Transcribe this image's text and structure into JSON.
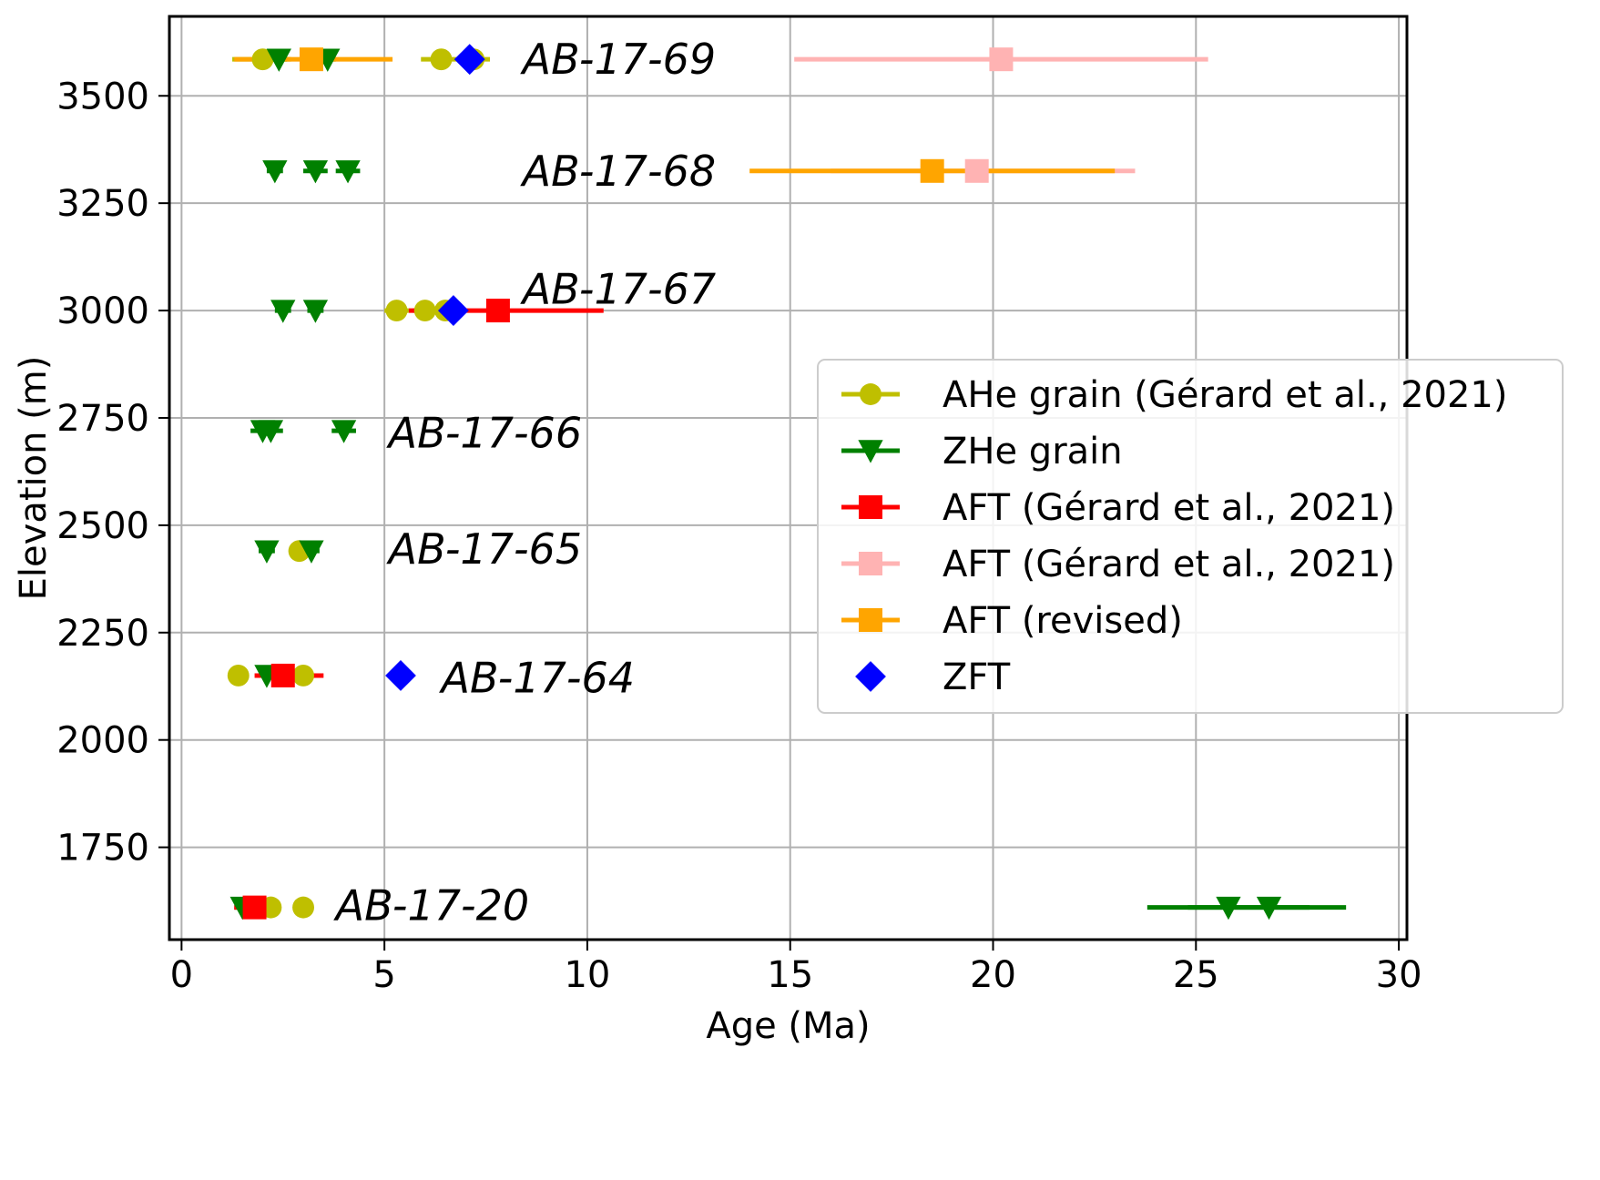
{
  "chart_data": {
    "type": "scatter",
    "xlabel": "Age (Ma)",
    "ylabel": "Elevation (m)",
    "xlim": [
      -0.3,
      30.2
    ],
    "ylim": [
      1535,
      3685
    ],
    "xticks": [
      0,
      5,
      10,
      15,
      20,
      25,
      30
    ],
    "yticks": [
      1750,
      2000,
      2250,
      2500,
      2750,
      3000,
      3250,
      3500
    ],
    "grid": true,
    "legend_position": "center-right",
    "colors": {
      "ahe": "#bfbf00",
      "zhe": "#008000",
      "aft": "#ff0000",
      "aft_prev": "#ffb3b3",
      "aft_revised": "#ffa500",
      "zft": "#0000ff"
    },
    "series": [
      {
        "key": "ahe",
        "name": "AHe grain (Gérard et al., 2021)",
        "marker": "circle",
        "color": "#bfbf00",
        "points": [
          {
            "x": 2.0,
            "y": 3585,
            "xmin": 1.25,
            "xmax": 2.7
          },
          {
            "x": 6.4,
            "y": 3585,
            "xmin": 5.9,
            "xmax": 7.0
          },
          {
            "x": 7.2,
            "y": 3585,
            "xmin": 6.9,
            "xmax": 7.6
          },
          {
            "x": 5.3,
            "y": 3000,
            "xmin": 5.0,
            "xmax": 5.6
          },
          {
            "x": 6.0,
            "y": 3000,
            "xmin": 5.7,
            "xmax": 6.3
          },
          {
            "x": 6.5,
            "y": 3000,
            "xmin": 6.2,
            "xmax": 6.8
          },
          {
            "x": 2.9,
            "y": 2440,
            "xmin": 2.7,
            "xmax": 3.1
          },
          {
            "x": 1.4,
            "y": 2150,
            "xmin": 1.3,
            "xmax": 1.6
          },
          {
            "x": 3.0,
            "y": 2150,
            "xmin": 2.8,
            "xmax": 3.4
          },
          {
            "x": 2.2,
            "y": 1610,
            "xmin": 2.0,
            "xmax": 2.4
          },
          {
            "x": 3.0,
            "y": 1610,
            "xmin": 2.8,
            "xmax": 3.2
          }
        ]
      },
      {
        "key": "zhe",
        "name": "ZHe grain",
        "marker": "triangle-down",
        "color": "#008000",
        "points": [
          {
            "x": 2.4,
            "y": 3585,
            "xmin": 2.2,
            "xmax": 2.6
          },
          {
            "x": 3.6,
            "y": 3585,
            "xmin": 3.4,
            "xmax": 3.8
          },
          {
            "x": 2.3,
            "y": 3325,
            "xmin": 2.1,
            "xmax": 2.5
          },
          {
            "x": 3.3,
            "y": 3325,
            "xmin": 3.0,
            "xmax": 3.6
          },
          {
            "x": 4.1,
            "y": 3325,
            "xmin": 3.8,
            "xmax": 4.4
          },
          {
            "x": 2.5,
            "y": 3000,
            "xmin": 2.3,
            "xmax": 2.7
          },
          {
            "x": 3.3,
            "y": 3000,
            "xmin": 3.1,
            "xmax": 3.5
          },
          {
            "x": 2.0,
            "y": 2720,
            "xmin": 1.7,
            "xmax": 2.3
          },
          {
            "x": 2.2,
            "y": 2720,
            "xmin": 1.9,
            "xmax": 2.5
          },
          {
            "x": 4.0,
            "y": 2720,
            "xmin": 3.7,
            "xmax": 4.3
          },
          {
            "x": 2.1,
            "y": 2440,
            "xmin": 1.9,
            "xmax": 2.3
          },
          {
            "x": 3.2,
            "y": 2440,
            "xmin": 3.0,
            "xmax": 3.4
          },
          {
            "x": 2.1,
            "y": 2150,
            "xmin": 1.9,
            "xmax": 2.3
          },
          {
            "x": 1.5,
            "y": 1610,
            "xmin": 1.3,
            "xmax": 1.7
          },
          {
            "x": 25.8,
            "y": 1610,
            "xmin": 23.8,
            "xmax": 27.8
          },
          {
            "x": 26.8,
            "y": 1610,
            "xmin": 24.8,
            "xmax": 28.7
          }
        ]
      },
      {
        "key": "aft",
        "name": "AFT (Gérard et al., 2021)",
        "marker": "square",
        "color": "#ff0000",
        "points": [
          {
            "x": 7.8,
            "y": 3000,
            "xmin": 5.6,
            "xmax": 10.4
          },
          {
            "x": 2.5,
            "y": 2150,
            "xmin": 1.8,
            "xmax": 3.5
          },
          {
            "x": 1.8,
            "y": 1610,
            "xmin": 1.3,
            "xmax": 2.3
          }
        ]
      },
      {
        "key": "aft_prev",
        "name": "AFT (Gérard et al., 2021)",
        "marker": "square",
        "color": "#ffb3b3",
        "points": [
          {
            "x": 20.2,
            "y": 3585,
            "xmin": 15.1,
            "xmax": 25.3
          },
          {
            "x": 19.6,
            "y": 3325,
            "xmin": 16.0,
            "xmax": 23.5
          }
        ]
      },
      {
        "key": "aft_revised",
        "name": "AFT (revised)",
        "marker": "square",
        "color": "#ffa500",
        "points": [
          {
            "x": 3.2,
            "y": 3585,
            "xmin": 1.3,
            "xmax": 5.2
          },
          {
            "x": 18.5,
            "y": 3325,
            "xmin": 14.0,
            "xmax": 23.0
          }
        ]
      },
      {
        "key": "zft",
        "name": "ZFT",
        "marker": "diamond",
        "color": "#0000ff",
        "points": [
          {
            "x": 7.1,
            "y": 3585
          },
          {
            "x": 6.7,
            "y": 3000
          },
          {
            "x": 5.4,
            "y": 2150
          }
        ]
      }
    ],
    "annotations": [
      {
        "text": "AB-17-69",
        "x": 8.4,
        "y": 3585
      },
      {
        "text": "AB-17-68",
        "x": 8.4,
        "y": 3325
      },
      {
        "text": "AB-17-67",
        "x": 8.4,
        "y": 3050
      },
      {
        "text": "AB-17-66",
        "x": 5.1,
        "y": 2715
      },
      {
        "text": "AB-17-65",
        "x": 5.1,
        "y": 2445
      },
      {
        "text": "AB-17-64",
        "x": 6.4,
        "y": 2145
      },
      {
        "text": "AB-17-20",
        "x": 3.8,
        "y": 1615
      }
    ]
  }
}
